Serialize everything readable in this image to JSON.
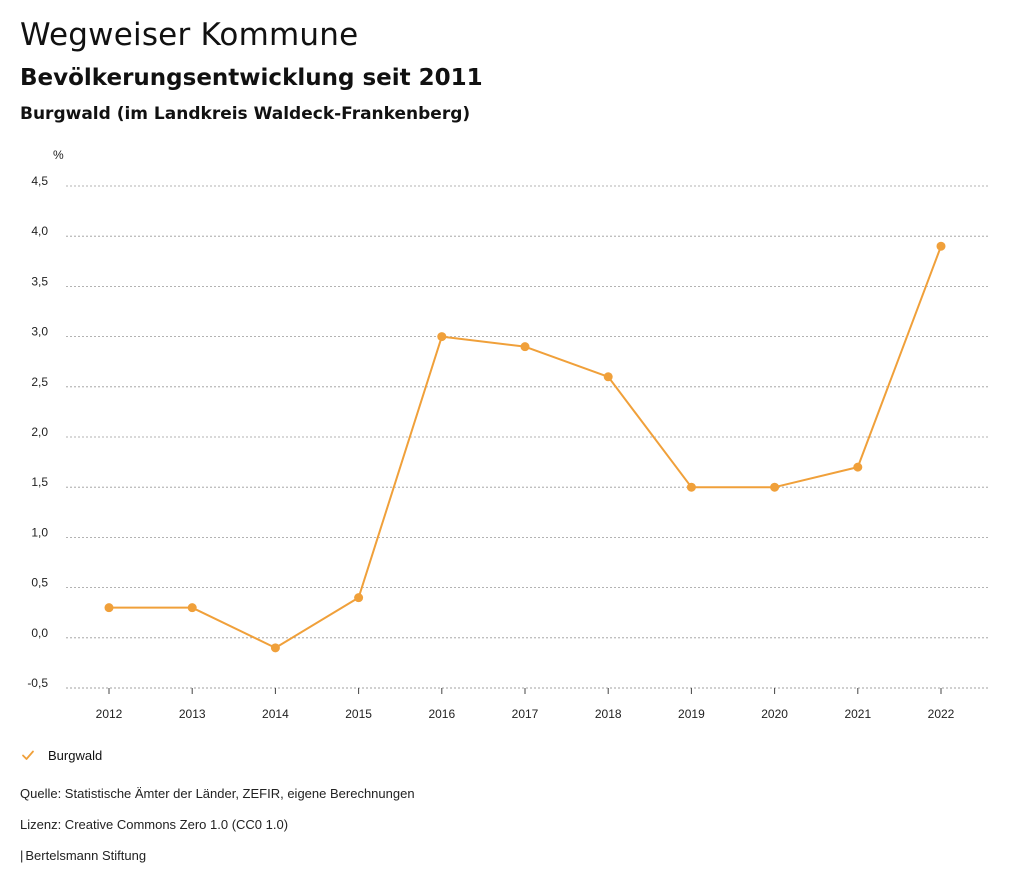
{
  "header": {
    "title": "Wegweiser Kommune",
    "subtitle": "Bevölkerungsentwicklung seit 2011",
    "region": "Burgwald (im Landkreis Waldeck-Frankenberg)"
  },
  "colors": {
    "series": "#f0a03a",
    "grid": "#9a9a9a",
    "axis": "#444444"
  },
  "chart_data": {
    "type": "line",
    "title": "Bevölkerungsentwicklung seit 2011",
    "ylabel": "%",
    "xlabel": "",
    "x": [
      "2012",
      "2013",
      "2014",
      "2015",
      "2016",
      "2017",
      "2018",
      "2019",
      "2020",
      "2021",
      "2022"
    ],
    "series": [
      {
        "name": "Burgwald",
        "values": [
          0.3,
          0.3,
          -0.1,
          0.4,
          3.0,
          2.9,
          2.6,
          1.5,
          1.5,
          1.7,
          3.9
        ]
      }
    ],
    "ylim": [
      -0.5,
      4.5
    ],
    "yticks": [
      -0.5,
      0.0,
      0.5,
      1.0,
      1.5,
      2.0,
      2.5,
      3.0,
      3.5,
      4.0,
      4.5
    ],
    "ytick_labels": [
      "-0,5",
      "0,0",
      "0,5",
      "1,0",
      "1,5",
      "2,0",
      "2,5",
      "3,0",
      "3,5",
      "4,0",
      "4,5"
    ],
    "grid": true,
    "legend": "bottom-left"
  },
  "legend": {
    "label": "Burgwald",
    "icon": "check-icon"
  },
  "footer": {
    "source": "Quelle: Statistische Ämter der Länder, ZEFIR, eigene Berechnungen",
    "license": "Lizenz: Creative Commons Zero 1.0 (CC0 1.0)",
    "credit_bar": "|",
    "credit": "Bertelsmann Stiftung"
  }
}
